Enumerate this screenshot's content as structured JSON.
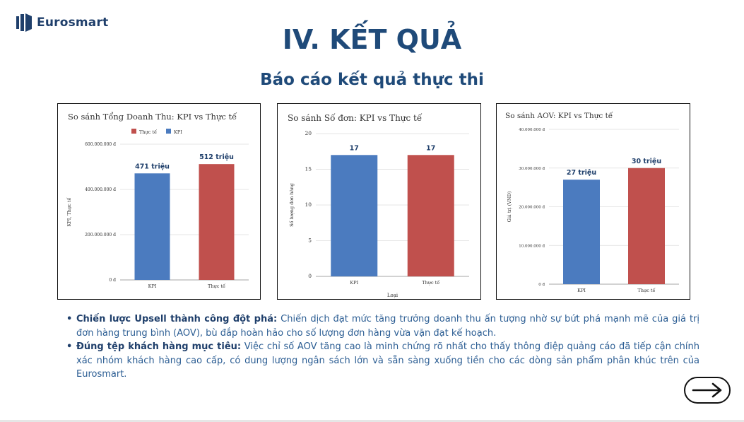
{
  "brand": {
    "name": "Eurosmart"
  },
  "page": {
    "title": "IV. KẾT QUẢ",
    "subtitle": "Báo cáo kết quả thực thi"
  },
  "colors": {
    "kpi": "#4b7bbf",
    "actual": "#c0504d",
    "title": "#1f4a79"
  },
  "chart_data": [
    {
      "type": "bar",
      "title": "So sánh Tổng Doanh Thu: KPI vs Thực tế",
      "legend": [
        "Thực tế",
        "KPI"
      ],
      "legend_position": "top",
      "categories": [
        "KPI",
        "Thực tế"
      ],
      "values": [
        471000000,
        512000000
      ],
      "data_labels": [
        "471 triệu",
        "512 triệu"
      ],
      "ylabel": "KPI, Thực tế",
      "xlabel": "",
      "ylim": [
        0,
        600000000
      ],
      "yticks": [
        0,
        200000000,
        400000000,
        600000000
      ],
      "ytick_labels": [
        "0 đ",
        "200.000.000 đ",
        "400.000.000 đ",
        "600.000.000 đ"
      ],
      "grid": true
    },
    {
      "type": "bar",
      "title": "So sánh Số đơn: KPI vs Thực tế",
      "categories": [
        "KPI",
        "Thực tế"
      ],
      "values": [
        17,
        17
      ],
      "data_labels": [
        "17",
        "17"
      ],
      "ylabel": "Số lượng đơn hàng",
      "xlabel": "Loại",
      "ylim": [
        0,
        20
      ],
      "yticks": [
        0,
        5,
        10,
        15,
        20
      ],
      "ytick_labels": [
        "0",
        "5",
        "10",
        "15",
        "20"
      ],
      "grid": true
    },
    {
      "type": "bar",
      "title": "So sánh AOV: KPI vs Thực tế",
      "categories": [
        "KPI",
        "Thực tế"
      ],
      "values": [
        27000000,
        30000000
      ],
      "data_labels": [
        "27 triệu",
        "30 triệu"
      ],
      "ylabel": "Giá trị (VND)",
      "xlabel": "",
      "ylim": [
        0,
        40000000
      ],
      "yticks": [
        0,
        10000000,
        20000000,
        30000000,
        40000000
      ],
      "ytick_labels": [
        "0 đ",
        "10.000.000 đ",
        "20.000.000 đ",
        "30.000.000 đ",
        "40.000.000 đ"
      ],
      "grid": true
    }
  ],
  "bullets": [
    {
      "lead": "Chiến lược Upsell thành công đột phá:",
      "text": " Chiến dịch đạt mức tăng trưởng doanh thu ấn tượng nhờ sự bứt phá mạnh mẽ của giá trị đơn hàng trung bình (AOV), bù đắp hoàn hảo cho số lượng đơn hàng vừa vặn đạt kế hoạch."
    },
    {
      "lead": "Đúng tệp khách hàng mục tiêu:",
      "text": " Việc chỉ số AOV tăng cao là minh chứng rõ nhất cho thấy thông điệp quảng cáo đã tiếp cận chính xác nhóm khách hàng cao cấp, có dung lượng ngân sách lớn và sẵn sàng xuống tiền cho các dòng sản phẩm phân khúc trên của Eurosmart."
    }
  ],
  "nav": {
    "next_icon": "arrow-right-icon"
  }
}
